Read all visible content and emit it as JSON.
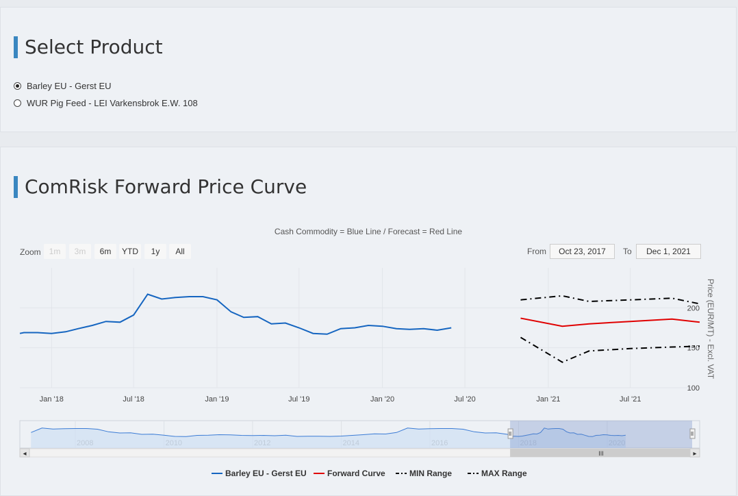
{
  "product_panel": {
    "title": "Select Product",
    "options": [
      {
        "label": "Barley EU - Gerst EU",
        "checked": true
      },
      {
        "label": "WUR Pig Feed - LEI Varkensbrok E.W. 108",
        "checked": false
      }
    ]
  },
  "chart_panel": {
    "title": "ComRisk Forward Price Curve",
    "subtitle": "Cash Commodity = Blue Line / Forecast = Red Line",
    "zoom": {
      "label": "Zoom",
      "buttons": [
        {
          "label": "1m",
          "disabled": true
        },
        {
          "label": "3m",
          "disabled": true
        },
        {
          "label": "6m",
          "disabled": false
        },
        {
          "label": "YTD",
          "disabled": false
        },
        {
          "label": "1y",
          "disabled": false
        },
        {
          "label": "All",
          "disabled": false
        }
      ]
    },
    "range": {
      "from_label": "From",
      "from_value": "Oct 23, 2017",
      "to_label": "To",
      "to_value": "Dec 1, 2021"
    },
    "navigator": {
      "scroll_grip": "III",
      "scroll_left": "◂",
      "scroll_right": "▸"
    }
  },
  "chart_data": {
    "type": "line",
    "title": "Cash Commodity = Blue Line / Forecast = Red Line",
    "xlabel": "",
    "ylabel": "Price (EUR/MT) - Excl. VAT",
    "x_range": [
      "2017-10-23",
      "2021-12-01"
    ],
    "ylim": [
      100,
      250
    ],
    "y_ticks": [
      100,
      150,
      200
    ],
    "x_ticks": [
      {
        "label": "Jan '18",
        "date": "2018-01-01"
      },
      {
        "label": "Jul '18",
        "date": "2018-07-01"
      },
      {
        "label": "Jan '19",
        "date": "2019-01-01"
      },
      {
        "label": "Jul '19",
        "date": "2019-07-01"
      },
      {
        "label": "Jan '20",
        "date": "2020-01-01"
      },
      {
        "label": "Jul '20",
        "date": "2020-07-01"
      },
      {
        "label": "Jan '21",
        "date": "2021-01-01"
      },
      {
        "label": "Jul '21",
        "date": "2021-07-01"
      }
    ],
    "series": [
      {
        "name": "Barley EU - Gerst EU",
        "color": "#1565c0",
        "dash": "solid",
        "dates": [
          "2017-10-23",
          "2017-11-01",
          "2017-12-01",
          "2018-01-01",
          "2018-02-01",
          "2018-03-01",
          "2018-04-01",
          "2018-05-01",
          "2018-06-01",
          "2018-07-01",
          "2018-08-01",
          "2018-09-01",
          "2018-10-01",
          "2018-11-01",
          "2018-12-01",
          "2019-01-01",
          "2019-02-01",
          "2019-03-01",
          "2019-04-01",
          "2019-05-01",
          "2019-06-01",
          "2019-07-01",
          "2019-08-01",
          "2019-09-01",
          "2019-10-01",
          "2019-11-01",
          "2019-12-01",
          "2020-01-01",
          "2020-02-01",
          "2020-03-01",
          "2020-04-01",
          "2020-05-01",
          "2020-06-01"
        ],
        "values": [
          168,
          169,
          169,
          168,
          170,
          174,
          178,
          183,
          182,
          191,
          217,
          211,
          213,
          214,
          214,
          210,
          195,
          188,
          189,
          180,
          181,
          175,
          168,
          167,
          174,
          175,
          178,
          177,
          174,
          173,
          174,
          172,
          175
        ]
      },
      {
        "name": "Forward Curve",
        "color": "#e00000",
        "dash": "solid",
        "dates": [
          "2020-11-01",
          "2021-02-01",
          "2021-04-01",
          "2021-07-01",
          "2021-10-01",
          "2021-12-01"
        ],
        "values": [
          187,
          177,
          180,
          183,
          186,
          182
        ]
      },
      {
        "name": "MIN Range",
        "color": "#000000",
        "dash": "dashdot",
        "dates": [
          "2020-11-01",
          "2021-02-01",
          "2021-04-01",
          "2021-07-01",
          "2021-10-01",
          "2021-12-01"
        ],
        "values": [
          163,
          132,
          146,
          149,
          151,
          152
        ]
      },
      {
        "name": "MAX Range",
        "color": "#000000",
        "dash": "dashdot",
        "dates": [
          "2020-11-01",
          "2021-02-01",
          "2021-04-01",
          "2021-07-01",
          "2021-10-01",
          "2021-12-01"
        ],
        "values": [
          210,
          215,
          208,
          210,
          212,
          205
        ]
      }
    ],
    "navigator": {
      "x_ticks": [
        "2008",
        "2010",
        "2012",
        "2014",
        "2016",
        "2018",
        "2020"
      ],
      "selected_range": [
        "2017-10-23",
        "2021-12-01"
      ]
    },
    "legend_position": "bottom"
  }
}
